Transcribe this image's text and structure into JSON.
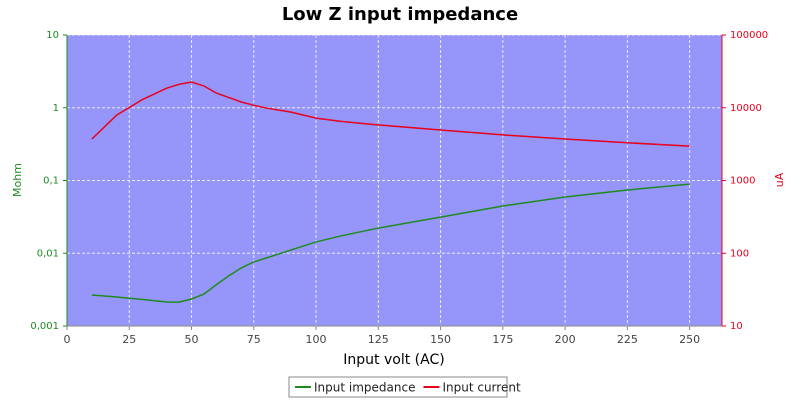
{
  "chart_data": {
    "type": "line",
    "title": "Low Z input impedance",
    "x_label": "Input volt (AC)",
    "y_label": "Mohm",
    "y2_label": "uA",
    "x": [
      10,
      20,
      30,
      40,
      45,
      50,
      55,
      60,
      65,
      70,
      75,
      80,
      90,
      100,
      110,
      125,
      150,
      175,
      200,
      225,
      250
    ],
    "series": [
      {
        "name": "Input impedance",
        "color": "#1f8a1f",
        "axis": "y",
        "values": [
          0.00267,
          0.0025,
          0.00232,
          0.00214,
          0.00213,
          0.00235,
          0.00275,
          0.0037,
          0.0049,
          0.0063,
          0.0076,
          0.0086,
          0.0111,
          0.0143,
          0.0173,
          0.0222,
          0.0314,
          0.0446,
          0.0593,
          0.074,
          0.089
        ]
      },
      {
        "name": "Input current",
        "color": "#e8001c",
        "axis": "y2",
        "values": [
          3720,
          7950,
          12800,
          18600,
          21000,
          22600,
          19900,
          15900,
          13800,
          12000,
          10800,
          9900,
          8700,
          7200,
          6500,
          5800,
          4950,
          4230,
          3720,
          3300,
          2970
        ]
      }
    ],
    "xlim": [
      0,
      263
    ],
    "xticks": [
      0,
      25,
      50,
      75,
      100,
      125,
      150,
      175,
      200,
      225,
      250
    ],
    "ylim": [
      0.001,
      10
    ],
    "yticks": [
      {
        "value": 0.001,
        "label": "0,001"
      },
      {
        "value": 0.01,
        "label": "0,01"
      },
      {
        "value": 0.1,
        "label": "0,1"
      },
      1,
      10
    ],
    "y_log": true,
    "y2lim": [
      10,
      100000
    ],
    "y2ticks": [
      10,
      100,
      1000,
      10000,
      100000
    ],
    "y2_log": true,
    "grid": true,
    "legend": "bottom"
  }
}
